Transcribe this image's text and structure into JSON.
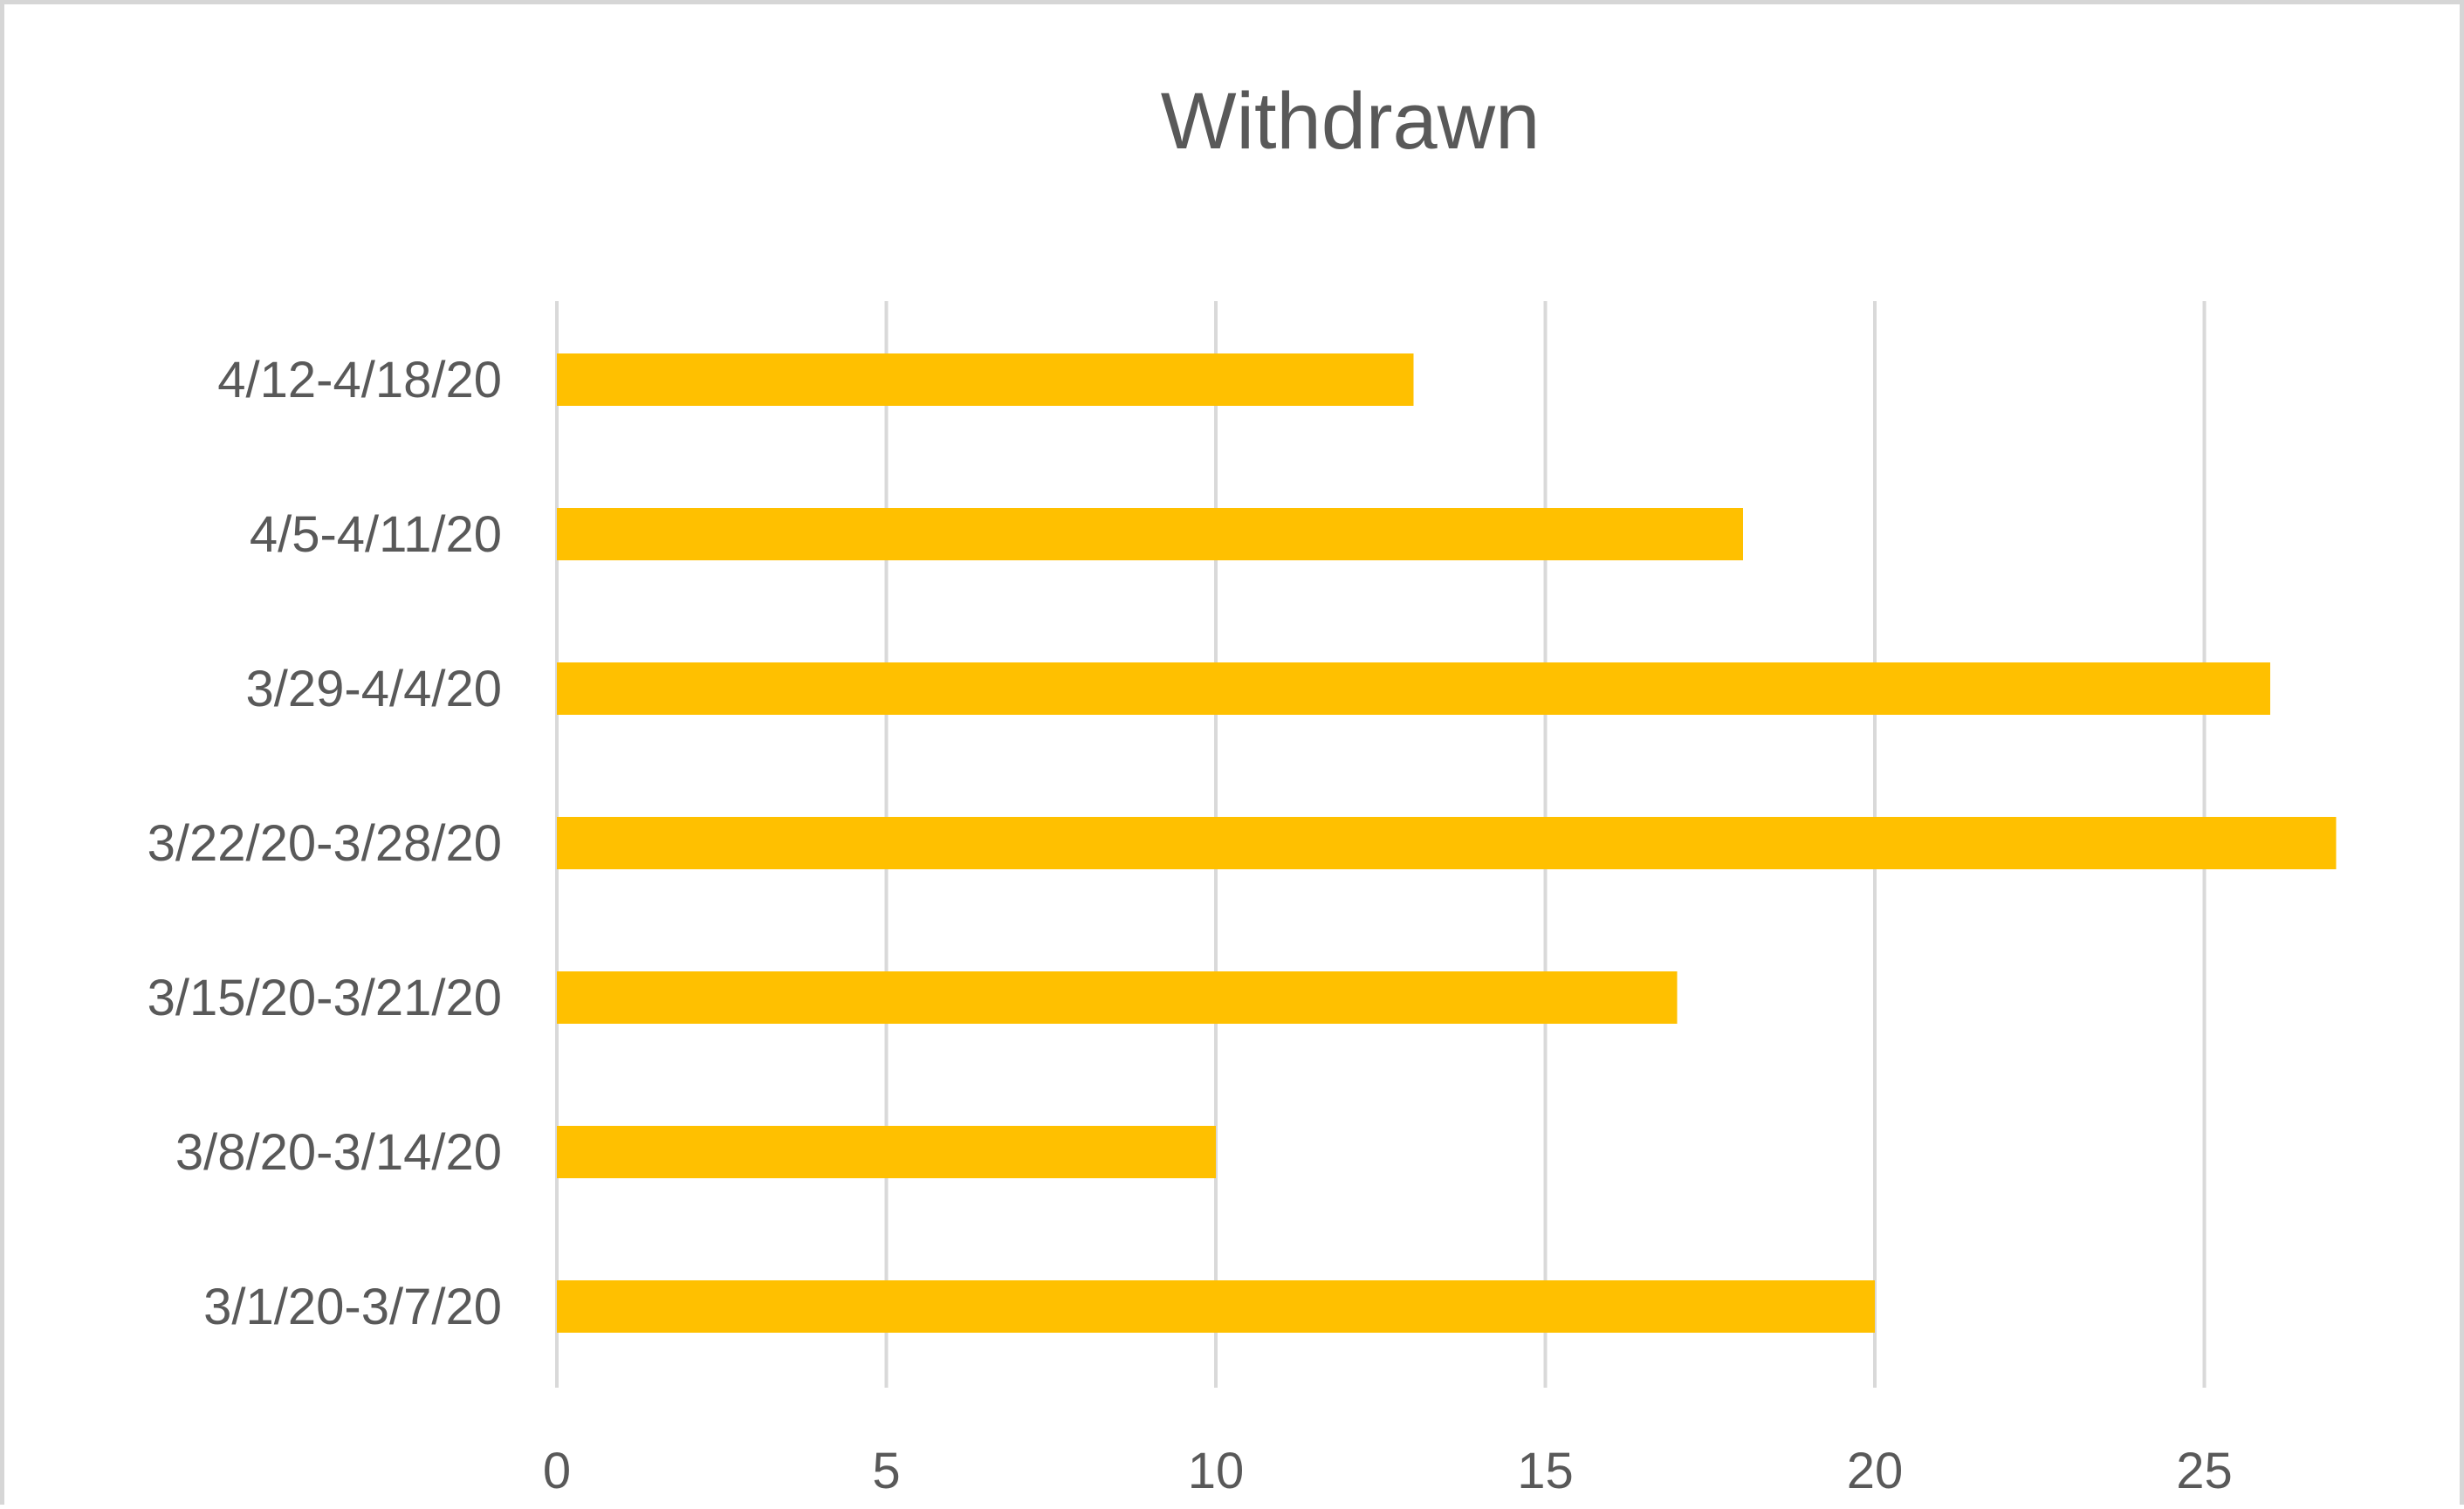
{
  "chart_data": {
    "type": "bar",
    "orientation": "horizontal",
    "title": "Withdrawn",
    "xlabel": "",
    "ylabel": "",
    "categories": [
      "4/12-4/18/20",
      "4/5-4/11/20",
      "3/29-4/4/20",
      "3/22/20-3/28/20",
      "3/15/20-3/21/20",
      "3/8/20-3/14/20",
      "3/1/20-3/7/20"
    ],
    "values": [
      13,
      18,
      26,
      27,
      17,
      10,
      20
    ],
    "xlim": [
      0,
      27
    ],
    "x_ticks": [
      0,
      5,
      10,
      15,
      20,
      25
    ],
    "grid": "vertical",
    "legend": "none",
    "bar_color": "#FFC000"
  }
}
